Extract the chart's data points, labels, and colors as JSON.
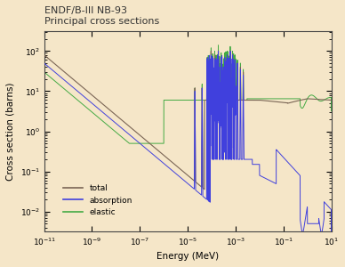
{
  "title_line1": "ENDF/B-III NB-93",
  "title_line2": "Principal cross sections",
  "xlabel": "Energy (MeV)",
  "ylabel": "Cross section (barns)",
  "background_color": "#f5e6c8",
  "plot_bg_color": "#f5e6c8",
  "total_color": "#7a6555",
  "absorption_color": "#4040dd",
  "elastic_color": "#44aa44",
  "legend_labels": [
    "total",
    "absorption",
    "elastic"
  ]
}
